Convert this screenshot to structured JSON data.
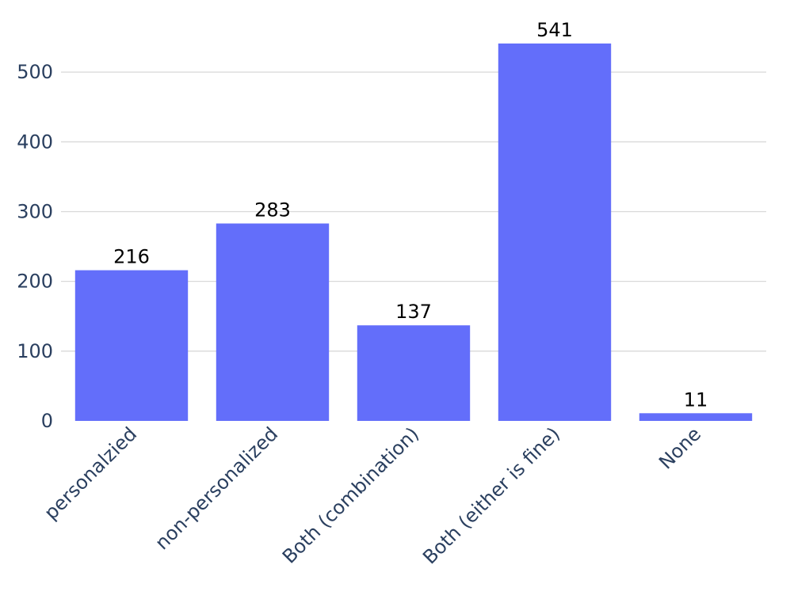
{
  "chart_data": {
    "type": "bar",
    "categories": [
      "personalzied",
      "non-personalized",
      "Both (combination)",
      "Both (either is fine)",
      "None"
    ],
    "values": [
      216,
      283,
      137,
      541,
      11
    ],
    "title": "",
    "xlabel": "",
    "ylabel": "",
    "ylim": [
      0,
      541
    ],
    "yticks": [
      0,
      100,
      200,
      300,
      400,
      500
    ],
    "grid": "horizontal",
    "legend": "none",
    "bar_color": "#636efa",
    "tick_color": "#2a3f5f",
    "label_color": "#000000"
  }
}
